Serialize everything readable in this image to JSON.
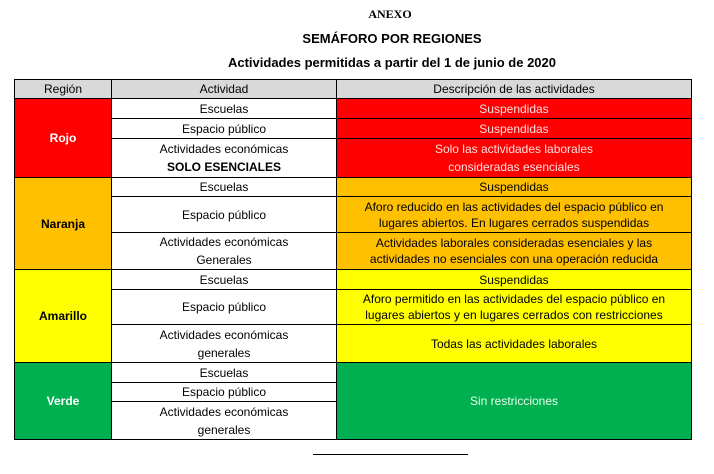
{
  "header": {
    "annex": "ANEXO",
    "title": "SEMÁFORO POR REGIONES",
    "subtitle": "Actividades permitidas a partir del 1 de junio de 2020"
  },
  "table": {
    "columns": [
      "Región",
      "Actividad",
      "Descripción de las actividades"
    ],
    "colors": {
      "rojo": "#ff0000",
      "naranja": "#ffc000",
      "amarillo": "#ffff00",
      "verde": "#00b050",
      "header": "#d9d9d9"
    },
    "rojo": {
      "region": "Rojo",
      "rows": [
        {
          "activity": "Escuelas",
          "description": "Suspendidas"
        },
        {
          "activity": "Espacio público",
          "description": "Suspendidas"
        },
        {
          "activity": "Actividades económicas",
          "activity_note": "SOLO ESENCIALES",
          "description": "Solo las actividades laborales",
          "description2": "consideradas esenciales"
        }
      ]
    },
    "naranja": {
      "region": "Naranja",
      "rows": [
        {
          "activity": "Escuelas",
          "description": "Suspendidas"
        },
        {
          "activity": "Espacio público",
          "description": "Aforo reducido en las actividades del espacio público en lugares abiertos. En lugares cerrados suspendidas"
        },
        {
          "activity": "Actividades económicas",
          "activity_note": "Generales",
          "description": "Actividades laborales consideradas esenciales y las actividades no esenciales con una operación reducida"
        }
      ]
    },
    "amarillo": {
      "region": "Amarillo",
      "rows": [
        {
          "activity": "Escuelas",
          "description": "Suspendidas"
        },
        {
          "activity": "Espacio público",
          "description": "Aforo permitido en las actividades del espacio público en lugares abiertos y en lugares cerrados con restricciones"
        },
        {
          "activity": "Actividades económicas",
          "activity_note": "generales",
          "description": "Todas las actividades laborales"
        }
      ]
    },
    "verde": {
      "region": "Verde",
      "description": "Sin restricciones",
      "rows": [
        {
          "activity": "Escuelas"
        },
        {
          "activity": "Espacio público"
        },
        {
          "activity": "Actividades económicas",
          "activity_note": "generales"
        }
      ]
    }
  }
}
